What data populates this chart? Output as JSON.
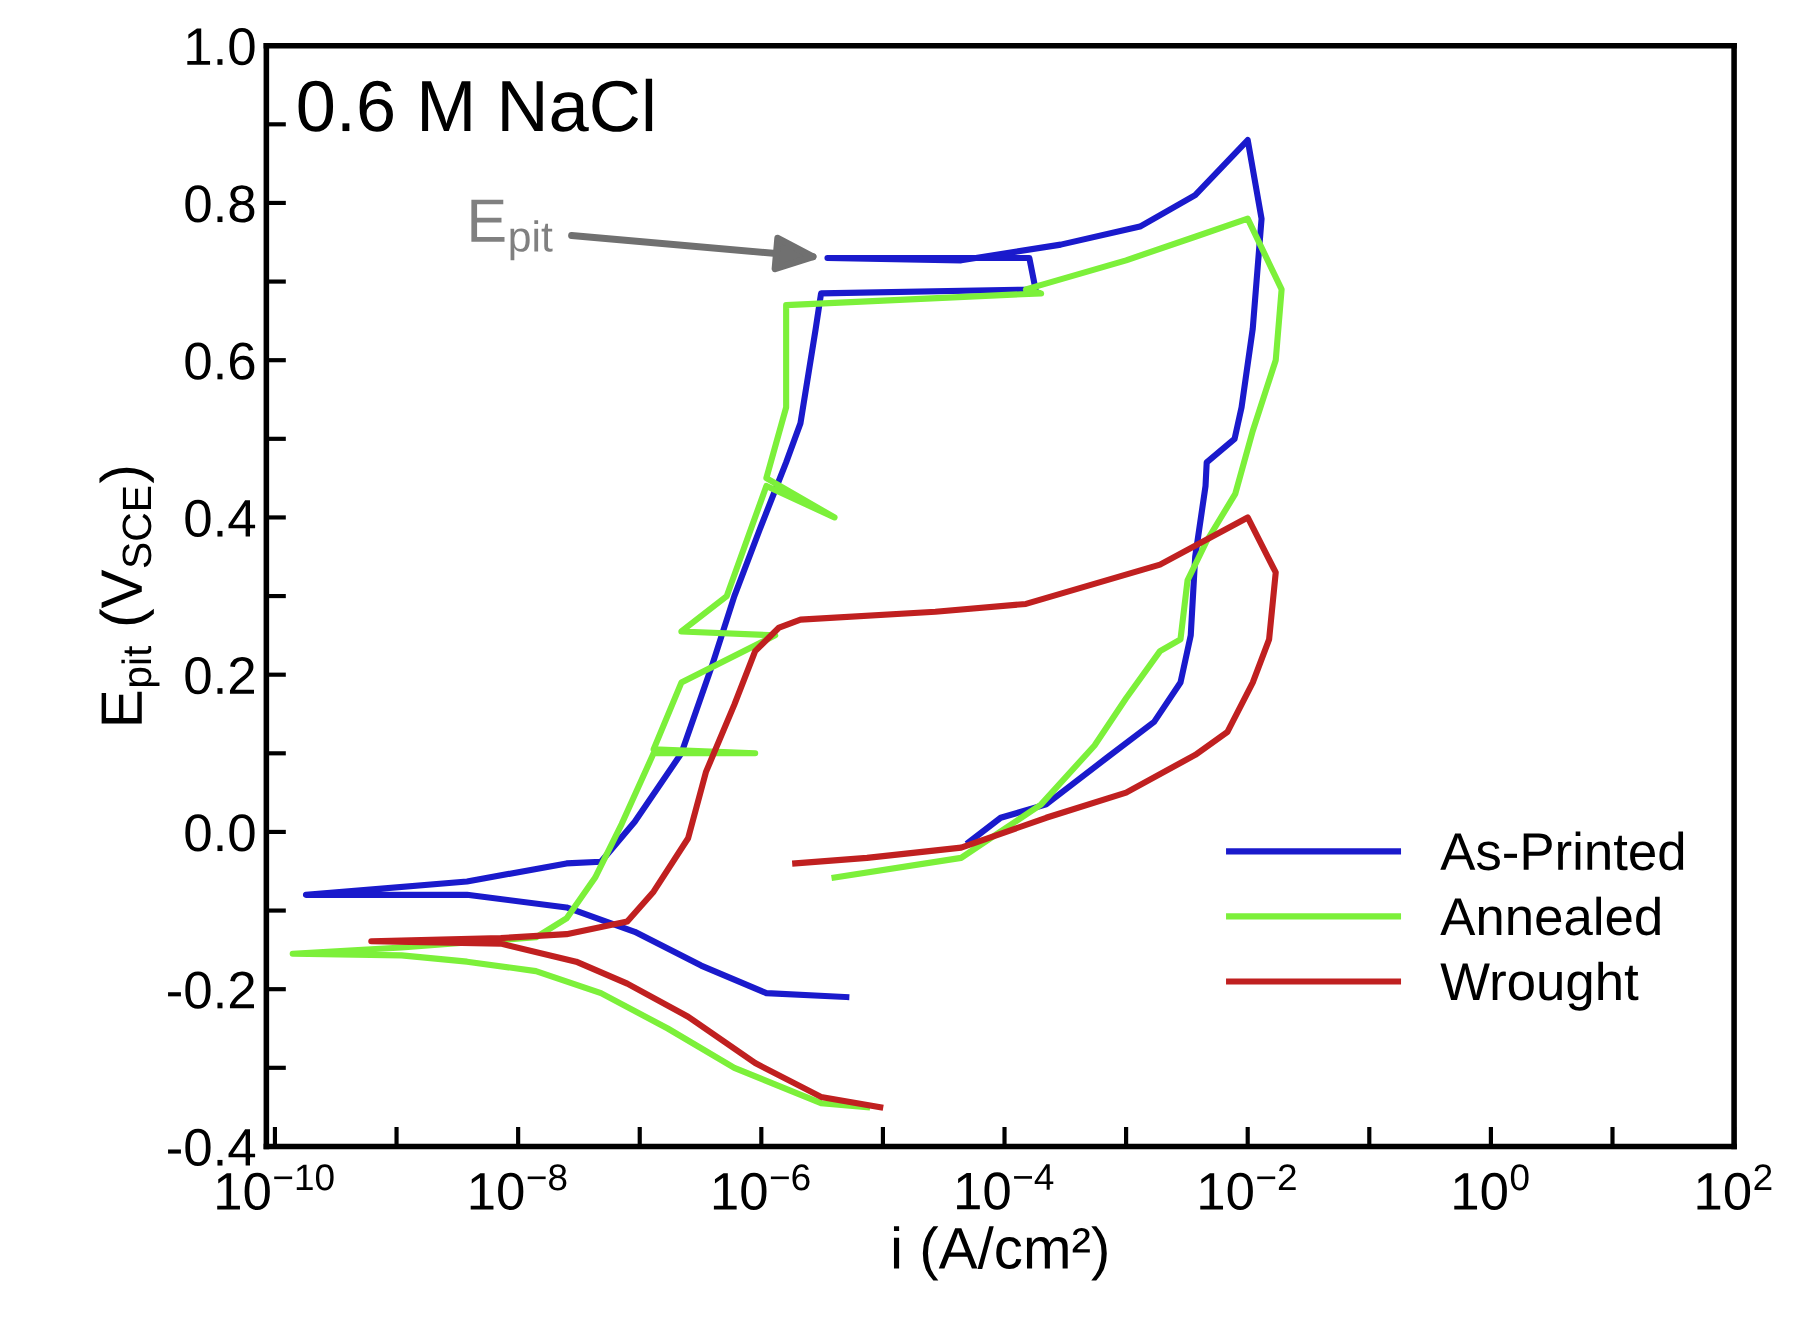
{
  "chart_data": {
    "type": "line",
    "xlabel": "i (A/cm²)",
    "ylabel": "E$_{pit}$ (V$_{SCE}$)",
    "log": "x",
    "xlim": [
      8.5e-11,
      100
    ],
    "ylim": [
      -0.4,
      1.0
    ],
    "xticks": [
      {
        "value": 1e-10,
        "label": "10$^{−10}$"
      },
      {
        "value": 1e-09,
        "label": null
      },
      {
        "value": 1e-08,
        "label": "10$^{−8}$"
      },
      {
        "value": 1e-07,
        "label": null
      },
      {
        "value": 1e-06,
        "label": "10$^{−6}$"
      },
      {
        "value": 1e-05,
        "label": null
      },
      {
        "value": 0.0001,
        "label": "10$^{−4}$"
      },
      {
        "value": 0.001,
        "label": null
      },
      {
        "value": 0.01,
        "label": "10$^{−2}$"
      },
      {
        "value": 0.1,
        "label": null
      },
      {
        "value": 1,
        "label": "10$^{0}$"
      },
      {
        "value": 10,
        "label": null
      },
      {
        "value": 100,
        "label": "10$^{2}$"
      }
    ],
    "yticks": [
      {
        "value": -0.4,
        "label": "-0.4"
      },
      {
        "value": -0.3,
        "label": null
      },
      {
        "value": -0.2,
        "label": "-0.2"
      },
      {
        "value": -0.1,
        "label": null
      },
      {
        "value": 0.0,
        "label": "0.0"
      },
      {
        "value": 0.1,
        "label": null
      },
      {
        "value": 0.2,
        "label": "0.2"
      },
      {
        "value": 0.3,
        "label": null
      },
      {
        "value": 0.4,
        "label": "0.4"
      },
      {
        "value": 0.5,
        "label": null
      },
      {
        "value": 0.6,
        "label": "0.6"
      },
      {
        "value": 0.7,
        "label": null
      },
      {
        "value": 0.8,
        "label": "0.8"
      },
      {
        "value": 0.9,
        "label": null
      },
      {
        "value": 1.0,
        "label": "1.0"
      }
    ],
    "grid": false,
    "legend": "bottom right",
    "marker": "none",
    "line_style": "solid",
    "annotations": [
      "0.6 M NaCl",
      {
        "text": "E$_{pit}$",
        "x": 3.5e-06,
        "y": 0.73
      }
    ],
    "series": [
      {
        "name": "As-Printed",
        "color": "#1a1acc",
        "x": [
          5e-06,
          1.1e-06,
          3.2e-07,
          9.1e-08,
          2.5e-08,
          3.8e-09,
          1.8e-10,
          3.8e-09,
          2.5e-08,
          4.8e-08,
          9.1e-08,
          2.2e-07,
          3.9e-07,
          6e-07,
          1e-06,
          1.6e-06,
          2.1e-06,
          2.8e-06,
          3.1e-06,
          0.00018,
          0.00016,
          3.5e-06,
          4.4e-05,
          0.00029,
          0.0013,
          0.0037,
          0.01,
          0.013,
          0.011,
          0.0089,
          0.0078,
          0.0046,
          0.0045,
          0.0037,
          0.0034,
          0.0028,
          0.0017,
          0.00069,
          0.00022,
          9.3e-05,
          5.1e-05
        ],
        "values": [
          -0.21,
          -0.205,
          -0.17,
          -0.127,
          -0.096,
          -0.08,
          -0.08,
          -0.063,
          -0.04,
          -0.038,
          0.013,
          0.1,
          0.21,
          0.3,
          0.39,
          0.47,
          0.52,
          0.64,
          0.685,
          0.69,
          0.73,
          0.73,
          0.727,
          0.747,
          0.77,
          0.81,
          0.88,
          0.78,
          0.64,
          0.54,
          0.5,
          0.47,
          0.44,
          0.35,
          0.25,
          0.19,
          0.14,
          0.094,
          0.035,
          0.018,
          -0.013
        ]
      },
      {
        "name": "Annealed",
        "color": "#7cf03a",
        "x": [
          7.4e-06,
          3.1e-06,
          6e-07,
          1.7e-07,
          4.8e-08,
          1.4e-08,
          3.8e-09,
          1.1e-09,
          1.4e-10,
          1.1e-09,
          1.4e-08,
          2.5e-08,
          4.3e-08,
          7.1e-08,
          1.3e-07,
          8.9e-07,
          1.3e-07,
          2.2e-07,
          1.3e-06,
          2.2e-07,
          5.2e-07,
          1.1e-06,
          4e-06,
          1.1e-06,
          1.6e-06,
          1.6e-06,
          0.0002,
          0.00015,
          0.001,
          0.0037,
          0.01,
          0.019,
          0.017,
          0.011,
          0.0079,
          0.0046,
          0.0032,
          0.0028,
          0.0019,
          0.001,
          0.00055,
          0.0002,
          4.4e-05,
          4e-06
        ],
        "values": [
          -0.35,
          -0.345,
          -0.3,
          -0.25,
          -0.205,
          -0.177,
          -0.165,
          -0.157,
          -0.155,
          -0.147,
          -0.134,
          -0.11,
          -0.058,
          0.01,
          0.1,
          0.1,
          0.105,
          0.19,
          0.25,
          0.255,
          0.3,
          0.44,
          0.4,
          0.45,
          0.54,
          0.67,
          0.685,
          0.69,
          0.727,
          0.757,
          0.78,
          0.69,
          0.6,
          0.51,
          0.43,
          0.37,
          0.32,
          0.245,
          0.23,
          0.17,
          0.11,
          0.035,
          -0.033,
          -0.058
        ]
      },
      {
        "name": "Wrought",
        "color": "#c02020",
        "x": [
          9.5e-06,
          3.1e-06,
          8.9e-07,
          2.5e-07,
          7.9e-08,
          3e-08,
          7.2e-09,
          6.2e-10,
          7.2e-09,
          2.5e-08,
          7.9e-08,
          1.3e-07,
          2.5e-07,
          3.5e-07,
          6e-07,
          8.9e-07,
          1.4e-06,
          2.1e-06,
          2.7e-05,
          0.00015,
          0.0019,
          0.01,
          0.017,
          0.015,
          0.011,
          0.0068,
          0.0037,
          0.001,
          0.00022,
          4.4e-05,
          7.4e-06,
          1.9e-06
        ],
        "values": [
          -0.35,
          -0.337,
          -0.294,
          -0.235,
          -0.193,
          -0.165,
          -0.142,
          -0.139,
          -0.135,
          -0.13,
          -0.114,
          -0.076,
          -0.008,
          0.076,
          0.162,
          0.23,
          0.26,
          0.27,
          0.28,
          0.29,
          0.34,
          0.4,
          0.33,
          0.245,
          0.19,
          0.127,
          0.098,
          0.05,
          0.018,
          -0.02,
          -0.033,
          -0.04
        ]
      }
    ]
  }
}
